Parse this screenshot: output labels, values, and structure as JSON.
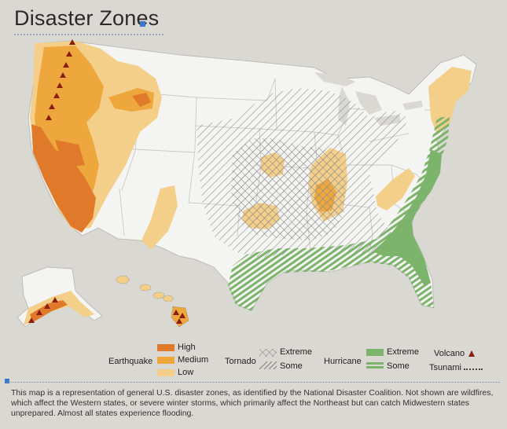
{
  "title": "Disaster Zones",
  "legend": {
    "earthquake": {
      "label": "Earthquake",
      "levels": [
        {
          "label": "High",
          "color": "#e07a2a"
        },
        {
          "label": "Medium",
          "color": "#eea73d"
        },
        {
          "label": "Low",
          "color": "#f4cf8a"
        }
      ]
    },
    "tornado": {
      "label": "Tornado",
      "levels": [
        {
          "label": "Extreme",
          "pattern": "crosshatch"
        },
        {
          "label": "Some",
          "pattern": "hatch"
        }
      ]
    },
    "hurricane": {
      "label": "Hurricane",
      "levels": [
        {
          "label": "Extreme",
          "color": "#7db46c"
        },
        {
          "label": "Some",
          "pattern": "green-stripes"
        }
      ]
    },
    "volcano": {
      "label": "Volcano",
      "icon": "triangle-icon",
      "color": "#8a1e10"
    },
    "tsunami": {
      "label": "Tsunami",
      "icon": "dotted-line"
    }
  },
  "caption": "This map is a representation of general U.S. disaster zones, as identified by the National Disaster Coalition. Not shown are wildfires, which affect the Western states, or severe winter storms, which primarily affect the Northeast but can catch Midwestern states unprepared. Almost all states experience flooding.",
  "colors": {
    "background": "#d9d8d3",
    "land": "#f4f4f2",
    "accent": "#3a78c9"
  }
}
